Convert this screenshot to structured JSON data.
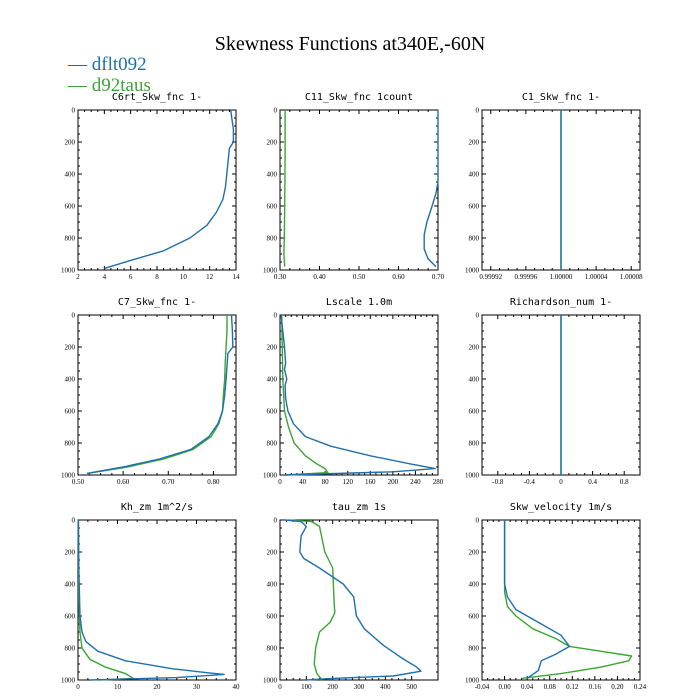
{
  "figure_title": "Skewness Functions at340E,-60N",
  "colors": {
    "dflt092": "#1f6fae",
    "d92taus": "#3aa532"
  },
  "legend": [
    {
      "label": "— dflt092",
      "color": "#1f6fae"
    },
    {
      "label": "— d92taus",
      "color": "#3aa532"
    }
  ],
  "chart_data": [
    {
      "type": "line",
      "title": "C6rt_Skw_fnc   1-",
      "xlim": [
        2,
        14
      ],
      "ylim": [
        0,
        1000
      ],
      "xticks": [
        2,
        4,
        6,
        8,
        10,
        12,
        14
      ],
      "xticklabels": [
        "2",
        "4",
        "6",
        "8",
        "10",
        "12",
        "14"
      ],
      "yticks": [
        0,
        200,
        400,
        600,
        800,
        1000
      ],
      "series": [
        {
          "name": "dflt092",
          "points": [
            [
              13.6,
              0
            ],
            [
              13.7,
              60
            ],
            [
              13.8,
              120
            ],
            [
              13.8,
              200
            ],
            [
              13.5,
              240
            ],
            [
              13.4,
              320
            ],
            [
              13.3,
              400
            ],
            [
              13.2,
              480
            ],
            [
              13.0,
              560
            ],
            [
              12.5,
              640
            ],
            [
              11.8,
              720
            ],
            [
              10.5,
              800
            ],
            [
              8.5,
              880
            ],
            [
              6.0,
              940
            ],
            [
              4.0,
              990
            ]
          ]
        }
      ]
    },
    {
      "type": "line",
      "title": "C11_Skw_fnc   1count",
      "xlim": [
        0.3,
        0.7
      ],
      "ylim": [
        0,
        1000
      ],
      "xticks": [
        0.3,
        0.4,
        0.5,
        0.6,
        0.7
      ],
      "xticklabels": [
        "0.30",
        "0.40",
        "0.50",
        "0.60",
        "0.70"
      ],
      "yticks": [
        0,
        200,
        400,
        600,
        800,
        1000
      ],
      "series": [
        {
          "name": "dflt092",
          "points": [
            [
              0.7,
              0
            ],
            [
              0.7,
              450
            ],
            [
              0.695,
              520
            ],
            [
              0.685,
              600
            ],
            [
              0.672,
              700
            ],
            [
              0.665,
              780
            ],
            [
              0.665,
              870
            ],
            [
              0.675,
              930
            ],
            [
              0.695,
              980
            ]
          ]
        },
        {
          "name": "d92taus",
          "points": [
            [
              0.313,
              0
            ],
            [
              0.313,
              300
            ],
            [
              0.312,
              600
            ],
            [
              0.311,
              800
            ],
            [
              0.31,
              900
            ],
            [
              0.312,
              980
            ]
          ]
        }
      ]
    },
    {
      "type": "line",
      "title": "C1_Skw_fnc   1-",
      "xlim": [
        0.99991,
        1.00009
      ],
      "ylim": [
        0,
        1000
      ],
      "xticks": [
        0.99992,
        0.99996,
        1.0,
        1.00004,
        1.00008
      ],
      "xticklabels": [
        "0.99992",
        "0.99996",
        "1.00000",
        "1.00004",
        "1.00008"
      ],
      "yticks": [
        0,
        200,
        400,
        600,
        800,
        1000
      ],
      "series": [
        {
          "name": "dflt092",
          "points": [
            [
              1.0,
              0
            ],
            [
              1.0,
              1000
            ]
          ]
        },
        {
          "name": "d92taus",
          "points": [
            [
              1.0,
              0
            ],
            [
              1.0,
              1000
            ]
          ]
        }
      ]
    },
    {
      "type": "line",
      "title": "C7_Skw_fnc   1-",
      "xlim": [
        0.5,
        0.85
      ],
      "ylim": [
        0,
        1000
      ],
      "xticks": [
        0.5,
        0.6,
        0.7,
        0.8
      ],
      "xticklabels": [
        "0.50",
        "0.60",
        "0.70",
        "0.80"
      ],
      "yticks": [
        0,
        200,
        400,
        600,
        800,
        1000
      ],
      "series": [
        {
          "name": "dflt092",
          "points": [
            [
              0.84,
              0
            ],
            [
              0.842,
              100
            ],
            [
              0.843,
              200
            ],
            [
              0.832,
              240
            ],
            [
              0.828,
              400
            ],
            [
              0.825,
              500
            ],
            [
              0.82,
              600
            ],
            [
              0.81,
              680
            ],
            [
              0.79,
              760
            ],
            [
              0.75,
              840
            ],
            [
              0.68,
              900
            ],
            [
              0.6,
              950
            ],
            [
              0.52,
              990
            ]
          ]
        },
        {
          "name": "d92taus",
          "points": [
            [
              0.83,
              0
            ],
            [
              0.83,
              100
            ],
            [
              0.828,
              200
            ],
            [
              0.826,
              300
            ],
            [
              0.825,
              400
            ],
            [
              0.822,
              500
            ],
            [
              0.82,
              600
            ],
            [
              0.812,
              680
            ],
            [
              0.795,
              760
            ],
            [
              0.755,
              840
            ],
            [
              0.69,
              900
            ],
            [
              0.61,
              950
            ],
            [
              0.52,
              990
            ]
          ]
        }
      ]
    },
    {
      "type": "line",
      "title": "Lscale   1.0m",
      "xlim": [
        0,
        280
      ],
      "ylim": [
        0,
        1000
      ],
      "xticks": [
        0,
        40,
        80,
        120,
        160,
        200,
        240,
        280
      ],
      "xticklabels": [
        "0",
        "40",
        "80",
        "120",
        "160",
        "200",
        "240",
        "280"
      ],
      "yticks": [
        0,
        200,
        400,
        600,
        800,
        1000
      ],
      "series": [
        {
          "name": "dflt092",
          "points": [
            [
              2,
              0
            ],
            [
              5,
              100
            ],
            [
              8,
              200
            ],
            [
              10,
              300
            ],
            [
              8,
              340
            ],
            [
              12,
              400
            ],
            [
              9,
              440
            ],
            [
              10,
              520
            ],
            [
              14,
              600
            ],
            [
              24,
              680
            ],
            [
              45,
              760
            ],
            [
              90,
              820
            ],
            [
              160,
              880
            ],
            [
              230,
              930
            ],
            [
              275,
              960
            ],
            [
              200,
              980
            ],
            [
              10,
              1000
            ]
          ]
        },
        {
          "name": "d92taus",
          "points": [
            [
              3,
              0
            ],
            [
              4,
              200
            ],
            [
              5,
              400
            ],
            [
              8,
              600
            ],
            [
              15,
              700
            ],
            [
              25,
              800
            ],
            [
              45,
              880
            ],
            [
              65,
              930
            ],
            [
              80,
              960
            ],
            [
              85,
              985
            ],
            [
              10,
              1000
            ]
          ]
        }
      ]
    },
    {
      "type": "line",
      "title": "Richardson_num   1-",
      "xlim": [
        -1,
        1
      ],
      "ylim": [
        0,
        1000
      ],
      "xticks": [
        -0.8,
        -0.4,
        0,
        0.4,
        0.8
      ],
      "xticklabels": [
        "-0.8",
        "-0.4",
        "0",
        "0.4",
        "0.8"
      ],
      "yticks": [
        0,
        200,
        400,
        600,
        800,
        1000
      ],
      "series": [
        {
          "name": "dflt092",
          "points": [
            [
              0,
              0
            ],
            [
              0,
              1000
            ]
          ]
        },
        {
          "name": "d92taus",
          "points": [
            [
              0,
              0
            ],
            [
              0,
              1000
            ]
          ]
        }
      ]
    },
    {
      "type": "line",
      "title": "Kh_zm   1m^2/s",
      "xlim": [
        0,
        40
      ],
      "ylim": [
        0,
        1000
      ],
      "xticks": [
        0,
        10,
        20,
        30,
        40
      ],
      "xticklabels": [
        "0",
        "10",
        "20",
        "30",
        "40"
      ],
      "yticks": [
        0,
        200,
        400,
        600,
        800,
        1000
      ],
      "series": [
        {
          "name": "dflt092",
          "points": [
            [
              0.1,
              0
            ],
            [
              0.2,
              300
            ],
            [
              0.5,
              600
            ],
            [
              1,
              700
            ],
            [
              2,
              760
            ],
            [
              5,
              820
            ],
            [
              12,
              880
            ],
            [
              24,
              930
            ],
            [
              33,
              955
            ],
            [
              37,
              965
            ],
            [
              25,
              985
            ],
            [
              3,
              1000
            ]
          ]
        },
        {
          "name": "d92taus",
          "points": [
            [
              0.1,
              0
            ],
            [
              0.2,
              500
            ],
            [
              0.5,
              700
            ],
            [
              1,
              800
            ],
            [
              3,
              870
            ],
            [
              7,
              920
            ],
            [
              12,
              960
            ],
            [
              14,
              990
            ],
            [
              5,
              1000
            ]
          ]
        }
      ]
    },
    {
      "type": "line",
      "title": "tau_zm   1s",
      "xlim": [
        0,
        600
      ],
      "ylim": [
        0,
        1000
      ],
      "xticks": [
        0,
        100,
        200,
        300,
        400,
        500
      ],
      "xticklabels": [
        "0",
        "100",
        "200",
        "300",
        "400",
        "500"
      ],
      "yticks": [
        0,
        200,
        400,
        600,
        800,
        1000
      ],
      "series": [
        {
          "name": "dflt092",
          "points": [
            [
              20,
              0
            ],
            [
              80,
              10
            ],
            [
              100,
              40
            ],
            [
              80,
              100
            ],
            [
              75,
              200
            ],
            [
              90,
              240
            ],
            [
              150,
              300
            ],
            [
              240,
              400
            ],
            [
              280,
              480
            ],
            [
              290,
              600
            ],
            [
              320,
              680
            ],
            [
              390,
              780
            ],
            [
              460,
              860
            ],
            [
              520,
              920
            ],
            [
              535,
              945
            ],
            [
              430,
              975
            ],
            [
              200,
              990
            ],
            [
              100,
              1000
            ]
          ]
        },
        {
          "name": "d92taus",
          "points": [
            [
              30,
              0
            ],
            [
              120,
              10
            ],
            [
              150,
              40
            ],
            [
              170,
              200
            ],
            [
              200,
              300
            ],
            [
              205,
              500
            ],
            [
              208,
              580
            ],
            [
              190,
              640
            ],
            [
              150,
              700
            ],
            [
              135,
              800
            ],
            [
              130,
              900
            ],
            [
              140,
              960
            ],
            [
              160,
              1000
            ]
          ]
        }
      ]
    },
    {
      "type": "line",
      "title": "Skw_velocity   1m/s",
      "xlim": [
        -0.04,
        0.24
      ],
      "ylim": [
        0,
        1000
      ],
      "xticks": [
        -0.04,
        0.0,
        0.04,
        0.08,
        0.12,
        0.16,
        0.2,
        0.24
      ],
      "xticklabels": [
        "-0.04",
        "0.00",
        "0.04",
        "0.08",
        "0.12",
        "0.16",
        "0.20",
        "0.24"
      ],
      "yticks": [
        0,
        200,
        400,
        600,
        800,
        1000
      ],
      "series": [
        {
          "name": "dflt092",
          "points": [
            [
              0,
              0
            ],
            [
              0,
              400
            ],
            [
              0.005,
              480
            ],
            [
              0.02,
              560
            ],
            [
              0.06,
              640
            ],
            [
              0.1,
              720
            ],
            [
              0.115,
              790
            ],
            [
              0.09,
              840
            ],
            [
              0.065,
              880
            ],
            [
              0.06,
              940
            ],
            [
              0.04,
              990
            ]
          ]
        },
        {
          "name": "d92taus",
          "points": [
            [
              0,
              0
            ],
            [
              0,
              450
            ],
            [
              0.005,
              540
            ],
            [
              0.02,
              600
            ],
            [
              0.05,
              680
            ],
            [
              0.09,
              740
            ],
            [
              0.115,
              790
            ],
            [
              0.17,
              820
            ],
            [
              0.225,
              850
            ],
            [
              0.22,
              880
            ],
            [
              0.17,
              920
            ],
            [
              0.1,
              960
            ],
            [
              0.03,
              990
            ]
          ]
        }
      ]
    }
  ]
}
